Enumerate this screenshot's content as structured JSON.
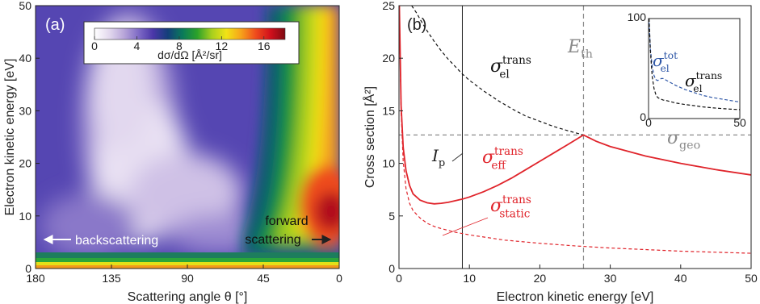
{
  "chart_data": [
    {
      "panel_label": "(a)",
      "type": "heatmap",
      "xlabel": "Scattering angle θ [°]",
      "ylabel": "Electron kinetic energy [eV]",
      "xlim": [
        180,
        0
      ],
      "ylim": [
        0,
        50
      ],
      "x_ticks": [
        "180",
        "135",
        "90",
        "45",
        "0"
      ],
      "y_ticks": [
        "0",
        "10",
        "20",
        "30",
        "40",
        "50"
      ],
      "colorbar": {
        "label": "dσ/dΩ [Å²/sr]",
        "range": [
          0,
          18
        ],
        "tick_labels": [
          "0",
          "4",
          "8",
          "12",
          "16"
        ],
        "colors": [
          "#ffffff",
          "#e3d9ee",
          "#b8a6d9",
          "#7f6bc6",
          "#4a36a8",
          "#133e7a",
          "#0a7a5a",
          "#2aa12a",
          "#a8cf1e",
          "#f1e316",
          "#f7a21a",
          "#ef4b1c",
          "#d1101c",
          "#7e0a12"
        ]
      },
      "annotations": [
        {
          "text": "backscattering",
          "arrow": "left"
        },
        {
          "text": "forward",
          "text2": "scattering",
          "arrow": "right"
        }
      ]
    },
    {
      "panel_label": "(b)",
      "type": "line",
      "xlabel": "Electron kinetic energy [eV]",
      "ylabel": "Cross section [Å²]",
      "xlim": [
        0,
        50
      ],
      "ylim": [
        0,
        25
      ],
      "x_ticks": [
        "0",
        "10",
        "20",
        "30",
        "40",
        "50"
      ],
      "y_ticks": [
        "0",
        "5",
        "10",
        "15",
        "20",
        "25"
      ],
      "reference_lines": {
        "Ip": {
          "x": 9,
          "label": "I",
          "sub": "p"
        },
        "Eth": {
          "x": 26.2,
          "label": "E",
          "sub": "th"
        },
        "sigma_geo": {
          "y": 12.7,
          "label": "σ",
          "sub": "geo"
        }
      },
      "series": [
        {
          "label_main": "σ",
          "label_sup": "trans",
          "label_sub": "el",
          "color": "#111111",
          "style": "dashed",
          "x": [
            1.8,
            2.5,
            3,
            4,
            5,
            6,
            7,
            8,
            9,
            10,
            12,
            14,
            16,
            18,
            20,
            22,
            24,
            26.2,
            28,
            30,
            35,
            40,
            45,
            50
          ],
          "y": [
            25,
            24.3,
            23.7,
            22.6,
            21.6,
            20.7,
            19.9,
            19.2,
            18.5,
            17.9,
            16.9,
            16.0,
            15.2,
            14.5,
            14.0,
            13.5,
            13.1,
            12.7,
            12.1,
            11.6,
            10.7,
            10.0,
            9.4,
            8.9
          ]
        },
        {
          "label_main": "σ",
          "label_sup": "trans",
          "label_sub": "eff",
          "color": "#e0242b",
          "style": "solid",
          "x": [
            0.05,
            0.3,
            0.6,
            1.0,
            1.5,
            2.0,
            3.0,
            4.0,
            5.0,
            6.0,
            7.0,
            8.0,
            9.0,
            10,
            12,
            14,
            16,
            18,
            20,
            22,
            24,
            26.2,
            28,
            30,
            35,
            40,
            45,
            50
          ],
          "y": [
            25,
            15.5,
            11.5,
            9.3,
            7.9,
            7.1,
            6.5,
            6.25,
            6.15,
            6.2,
            6.3,
            6.45,
            6.6,
            6.8,
            7.3,
            7.9,
            8.6,
            9.4,
            10.2,
            11.0,
            11.8,
            12.7,
            12.1,
            11.6,
            10.7,
            10.0,
            9.4,
            8.9
          ]
        },
        {
          "label_main": "σ",
          "label_sup": "trans",
          "label_sub": "static",
          "color": "#e0242b",
          "style": "dashed",
          "x": [
            0.05,
            0.3,
            0.6,
            1.0,
            1.5,
            2.0,
            3.0,
            4.0,
            5.0,
            6.0,
            8.0,
            10,
            15,
            20,
            25,
            30,
            35,
            40,
            45,
            50
          ],
          "y": [
            25,
            15.0,
            10.2,
            7.6,
            6.2,
            5.5,
            4.8,
            4.3,
            4.0,
            3.8,
            3.45,
            3.2,
            2.7,
            2.4,
            2.15,
            1.95,
            1.8,
            1.65,
            1.55,
            1.45
          ]
        }
      ],
      "inset": {
        "type": "line",
        "xlim": [
          0,
          50
        ],
        "ylim": [
          0,
          100
        ],
        "x_ticks": [
          "0",
          "50"
        ],
        "y_ticks": [
          "0",
          "100"
        ],
        "series": [
          {
            "label_main": "σ",
            "label_sup": "tot",
            "label_sub": "el",
            "color": "#2f57a7",
            "style": "dashed",
            "x": [
              0.3,
              1,
              2,
              3,
              4,
              5,
              6,
              7,
              8,
              9,
              10,
              12,
              15,
              20,
              25,
              30,
              35,
              40,
              45,
              50
            ],
            "y": [
              96,
              70,
              52,
              43,
              39,
              38,
              39,
              40,
              40,
              39,
              38,
              36,
              33,
              29,
              26,
              23,
              21,
              19.5,
              18,
              16.5
            ]
          },
          {
            "label_main": "σ",
            "label_sup": "trans",
            "label_sub": "el",
            "color": "#111111",
            "style": "dashed",
            "x": [
              0.3,
              1,
              2,
              3,
              4,
              5,
              6,
              8,
              10,
              12,
              15,
              20,
              25,
              30,
              35,
              40,
              45,
              50
            ],
            "y": [
              100,
              68,
              42,
              30,
              24,
              21,
              20,
              18.5,
              17.9,
              16.9,
              15.5,
              14,
              12.9,
              11.6,
              10.7,
              10,
              9.4,
              8.9
            ]
          }
        ]
      }
    }
  ]
}
